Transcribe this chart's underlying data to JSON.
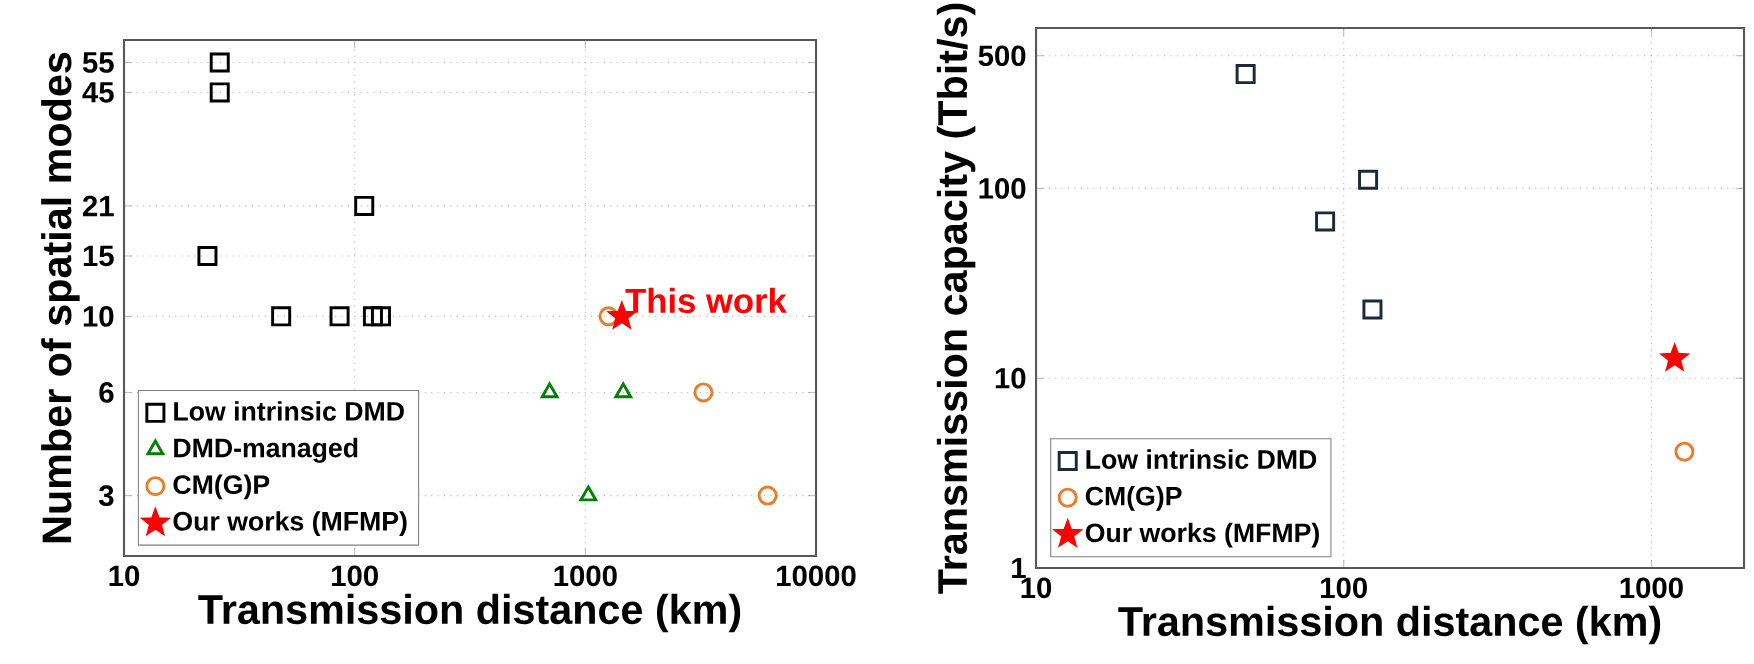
{
  "chart_data": [
    {
      "type": "scatter",
      "xlabel": "Transmission distance (km)",
      "ylabel": "Number of spatial modes",
      "log": "xy",
      "xlim": [
        10,
        10000
      ],
      "ylim": [
        2,
        64
      ],
      "xticks": [
        10,
        100,
        1000,
        10000
      ],
      "yticks": [
        3,
        6,
        10,
        15,
        21,
        45,
        55
      ],
      "grid": true,
      "legend": "bottom left",
      "series": [
        {
          "name": "Low intrinsic DMD",
          "color": "#000000",
          "marker": "square",
          "x": [
            26,
            26,
            110,
            23,
            48,
            86,
            120,
            130
          ],
          "values": [
            55,
            45,
            21,
            15,
            10,
            10,
            10,
            10
          ]
        },
        {
          "name": "DMD-managed",
          "color": "#008000",
          "marker": "triangle",
          "x": [
            700,
            1460,
            1030
          ],
          "values": [
            6,
            6,
            3
          ]
        },
        {
          "name": "CM(G)P",
          "color": "#e87e2c",
          "marker": "circle",
          "x": [
            1260,
            3250,
            6170
          ],
          "values": [
            10,
            6,
            3
          ]
        },
        {
          "name": "Our works (MFMP)",
          "color": "#ff0000",
          "marker": "star",
          "x": [
            1440
          ],
          "values": [
            10
          ]
        }
      ],
      "annotations": [
        {
          "text": "This work",
          "x": 1440,
          "y": 10
        }
      ]
    },
    {
      "type": "scatter",
      "xlabel": "Transmission distance (km)",
      "ylabel": "Transmission capacity (Tbit/s)",
      "log": "xy",
      "xlim": [
        10,
        2000
      ],
      "ylim": [
        1,
        700
      ],
      "xticks": [
        10,
        100,
        1000
      ],
      "yticks": [
        1,
        10,
        100,
        500
      ],
      "grid": true,
      "legend": "bottom left",
      "series": [
        {
          "name": "Low intrinsic DMD",
          "color": "#1a2a3a",
          "marker": "square",
          "x": [
            48,
            120,
            87,
            124
          ],
          "values": [
            400,
            111,
            67,
            23
          ]
        },
        {
          "name": "CM(G)P",
          "color": "#e87e2c",
          "marker": "circle",
          "x": [
            1280
          ],
          "values": [
            4.1
          ]
        },
        {
          "name": "Our works (MFMP)",
          "color": "#ff0000",
          "marker": "star",
          "x": [
            1190
          ],
          "values": [
            12.7
          ]
        }
      ]
    }
  ]
}
